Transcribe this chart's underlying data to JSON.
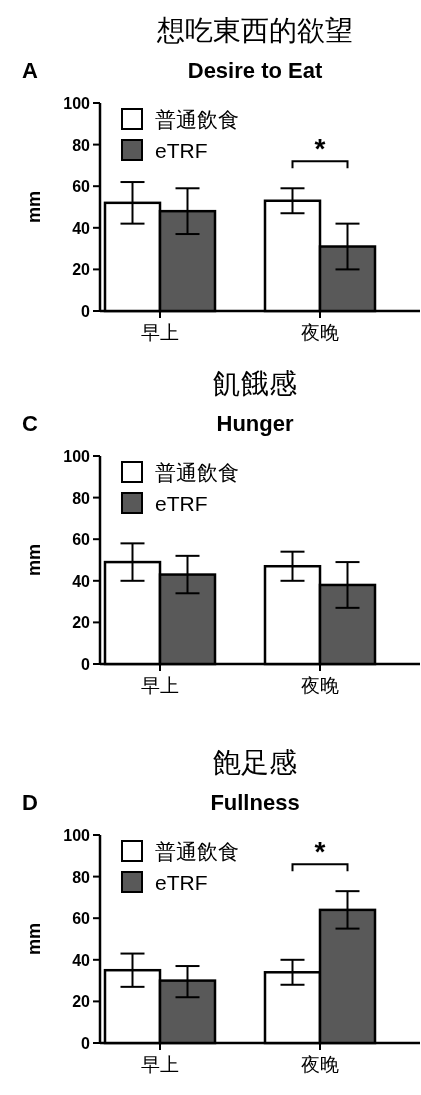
{
  "chart_data": [
    {
      "type": "bar",
      "title": "想吃東西的欲望",
      "subtitle": "Desire to Eat",
      "ylabel": "mm",
      "categories": [
        "早上",
        "夜晚"
      ],
      "ylim": [
        0,
        100
      ],
      "yticks": [
        0,
        20,
        40,
        60,
        80,
        100
      ],
      "legend": "top left",
      "grid": false,
      "series": [
        {
          "name": "普通飲食",
          "color": "#ffffff",
          "values": [
            52,
            53
          ],
          "errors": [
            [
              42,
              62
            ],
            [
              47,
              59
            ]
          ]
        },
        {
          "name": "eTRF",
          "color": "#595959",
          "values": [
            48,
            31
          ],
          "errors": [
            [
              37,
              59
            ],
            [
              20,
              42
            ]
          ]
        }
      ],
      "annotations": [
        "A",
        "*"
      ]
    },
    {
      "type": "bar",
      "title": "飢餓感",
      "subtitle": "Hunger",
      "ylabel": "mm",
      "categories": [
        "早上",
        "夜晚"
      ],
      "ylim": [
        0,
        100
      ],
      "yticks": [
        0,
        20,
        40,
        60,
        80,
        100
      ],
      "legend": "top left",
      "grid": false,
      "series": [
        {
          "name": "普通飲食",
          "color": "#ffffff",
          "values": [
            49,
            47
          ],
          "errors": [
            [
              40,
              58
            ],
            [
              40,
              54
            ]
          ]
        },
        {
          "name": "eTRF",
          "color": "#595959",
          "values": [
            43,
            38
          ],
          "errors": [
            [
              34,
              52
            ],
            [
              27,
              49
            ]
          ]
        }
      ],
      "annotations": [
        "C"
      ]
    },
    {
      "type": "bar",
      "title": "飽足感",
      "subtitle": "Fullness",
      "ylabel": "mm",
      "categories": [
        "早上",
        "夜晚"
      ],
      "ylim": [
        0,
        100
      ],
      "yticks": [
        0,
        20,
        40,
        60,
        80,
        100
      ],
      "legend": "top left",
      "grid": false,
      "series": [
        {
          "name": "普通飲食",
          "color": "#ffffff",
          "values": [
            35,
            34
          ],
          "errors": [
            [
              27,
              43
            ],
            [
              28,
              40
            ]
          ]
        },
        {
          "name": "eTRF",
          "color": "#595959",
          "values": [
            30,
            64
          ],
          "errors": [
            [
              22,
              37
            ],
            [
              55,
              73
            ]
          ]
        }
      ],
      "annotations": [
        "D",
        "*"
      ]
    }
  ]
}
